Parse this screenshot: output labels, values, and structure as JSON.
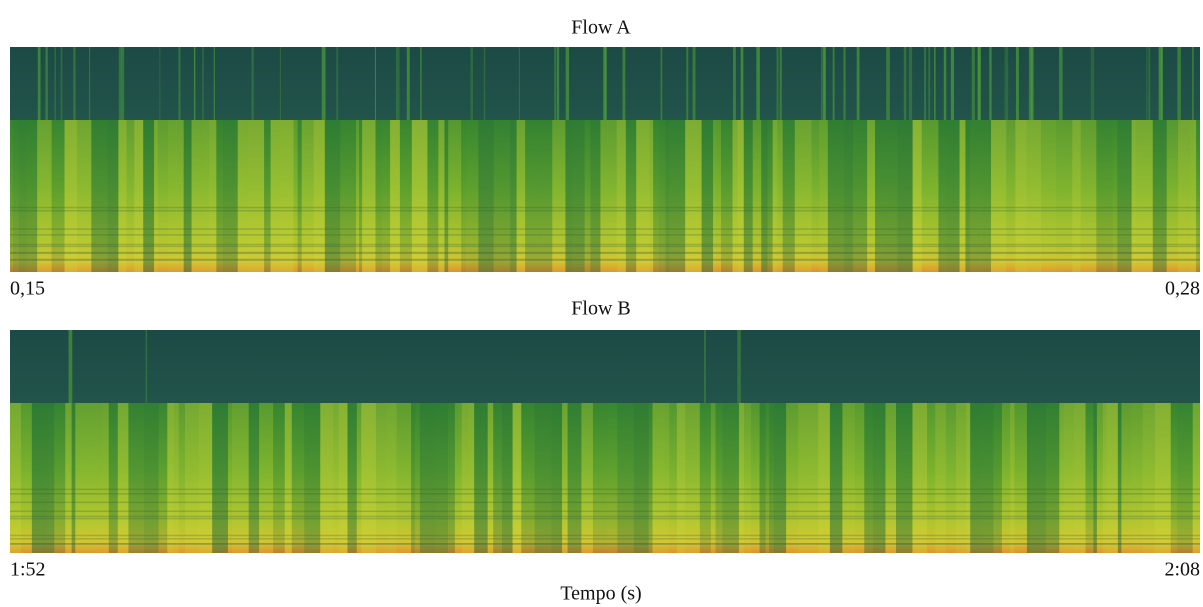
{
  "panels": [
    {
      "title": "Flow A",
      "start_label": "0,15",
      "end_label": "0,28"
    },
    {
      "title": "Flow B",
      "start_label": "1:52",
      "end_label": "2:08"
    }
  ],
  "x_axis_label": "Tempo (s)"
}
